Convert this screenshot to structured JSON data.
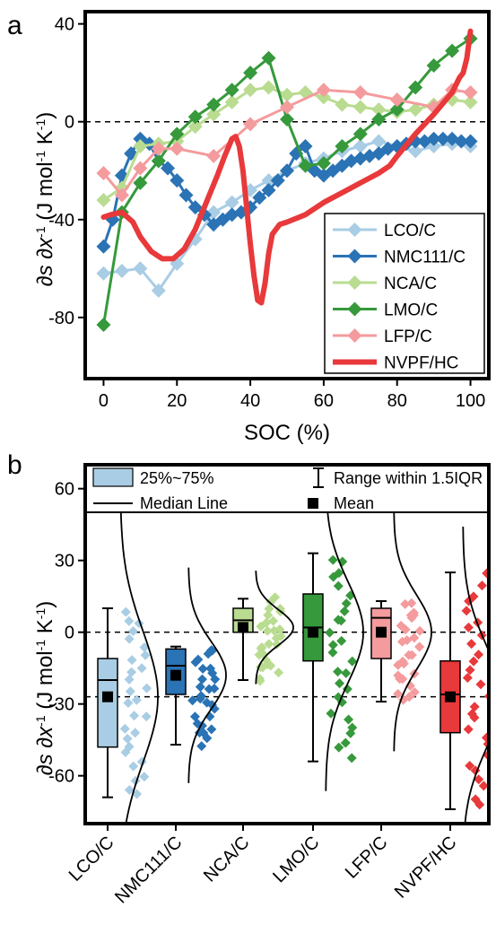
{
  "figure": {
    "panel_a_letter": "a",
    "panel_b_letter": "b"
  },
  "chart_data": [
    {
      "type": "line",
      "panel": "a",
      "xlabel": "SOC (%)",
      "ylabel_parts": {
        "a": "∂",
        "b": "s ",
        "c": "∂",
        "d": "x",
        "e": "-1",
        "f": " (J mol",
        "g": "-1",
        "h": " K",
        "i": "-1",
        "j": ")"
      },
      "xlim": [
        -5,
        105
      ],
      "ylim": [
        -105,
        45
      ],
      "xticks": [
        0,
        20,
        40,
        60,
        80,
        100
      ],
      "yticks": [
        40,
        0,
        -40,
        -80
      ],
      "xtick_labels": [
        "0",
        "20",
        "40",
        "60",
        "80",
        "100"
      ],
      "ytick_labels": [
        "40",
        "0",
        "-40",
        "-80"
      ],
      "reference_line_y": 0,
      "legend_position": "bottom-right",
      "series": [
        {
          "name": "LCO/C",
          "color": "#a9cde4",
          "marker": "diamond",
          "x": [
            0,
            5,
            10,
            15,
            20,
            25,
            30,
            35,
            40,
            45,
            50,
            55,
            60,
            65,
            70,
            75,
            80,
            85,
            90,
            95,
            100
          ],
          "y": [
            -62,
            -61,
            -60,
            -69,
            -58,
            -48,
            -37,
            -33,
            -28,
            -24,
            -20,
            -17,
            -15,
            -12,
            -10,
            -8,
            -10,
            -12,
            -10,
            -9,
            -10
          ]
        },
        {
          "name": "NMC111/C",
          "color": "#2a73b5",
          "marker": "diamond",
          "x": [
            0,
            2.5,
            5,
            7.5,
            10,
            12.5,
            15,
            17.5,
            20,
            22.5,
            25,
            27.5,
            30,
            32.5,
            35,
            37.5,
            40,
            42.5,
            45,
            47.5,
            50,
            52.5,
            55,
            57.5,
            60,
            62.5,
            65,
            67.5,
            70,
            72.5,
            75,
            77.5,
            80,
            82.5,
            85,
            87.5,
            90,
            92.5,
            95,
            97.5,
            100
          ],
          "y": [
            -51,
            -40,
            -22,
            -13,
            -7,
            -9,
            -16,
            -19,
            -24,
            -30,
            -35,
            -38,
            -42,
            -40,
            -38,
            -37,
            -35,
            -31,
            -28,
            -24,
            -20,
            -13,
            -10,
            -20,
            -22,
            -20,
            -18,
            -16,
            -15,
            -14,
            -13,
            -11,
            -10,
            -9,
            -8,
            -8,
            -7,
            -7,
            -7,
            -8,
            -8
          ]
        },
        {
          "name": "NCA/C",
          "color": "#b9dc91",
          "marker": "diamond",
          "x": [
            0,
            5,
            10,
            15,
            20,
            25,
            30,
            35,
            40,
            45,
            50,
            55,
            60,
            65,
            70,
            75,
            80,
            85,
            90,
            95,
            100
          ],
          "y": [
            -32,
            -27,
            -10,
            -9,
            -8,
            -2,
            3,
            8,
            13,
            14,
            11,
            12,
            10,
            7,
            6,
            5,
            4,
            5,
            7,
            9,
            8
          ]
        },
        {
          "name": "LMO/C",
          "color": "#36993b",
          "marker": "diamond",
          "x": [
            0,
            5,
            10,
            15,
            20,
            25,
            30,
            35,
            40,
            45,
            50,
            55,
            60,
            65,
            70,
            75,
            80,
            85,
            90,
            95,
            100
          ],
          "y": [
            -83,
            -37,
            -25,
            -16,
            -5,
            2,
            7,
            13,
            20,
            26,
            1,
            -18,
            -17,
            -10,
            -5,
            1,
            5,
            14,
            23,
            29,
            34
          ]
        },
        {
          "name": "LFP/C",
          "color": "#f49b9d",
          "marker": "diamond",
          "x": [
            0,
            5,
            10,
            15,
            20,
            30,
            40,
            50,
            60,
            70,
            80,
            90,
            95,
            100
          ],
          "y": [
            -21,
            -30,
            -19,
            -11,
            -11,
            -14,
            -1,
            6,
            13,
            12,
            9,
            6,
            13,
            12
          ]
        },
        {
          "name": "NVPF/HC",
          "color": "#e8393b",
          "marker": "none",
          "x": [
            0,
            2,
            5,
            8,
            10,
            13,
            16,
            19,
            22,
            25,
            28,
            31,
            33,
            35,
            36,
            37,
            38,
            39,
            40,
            41,
            42,
            43,
            44,
            45,
            46,
            48,
            50,
            55,
            60,
            65,
            70,
            75,
            78,
            80,
            85,
            90,
            95,
            97,
            98,
            99,
            100
          ],
          "y": [
            -39,
            -38,
            -37,
            -41,
            -47,
            -53,
            -56,
            -56,
            -52,
            -44,
            -33,
            -22,
            -14,
            -7,
            -6,
            -10,
            -20,
            -35,
            -50,
            -63,
            -73,
            -74,
            -66,
            -54,
            -46,
            -42,
            -41,
            -38,
            -33,
            -29,
            -25,
            -21,
            -18,
            -14,
            -5,
            3,
            12,
            18,
            20,
            26,
            37
          ]
        }
      ]
    },
    {
      "type": "box",
      "panel": "b",
      "ylabel_parts": {
        "a": "∂",
        "b": "s ",
        "c": "∂",
        "d": "x",
        "e": "-1",
        "f": " (J mol",
        "g": "-1",
        "h": " K",
        "i": "-1",
        "j": ")"
      },
      "ylim": [
        -80,
        70
      ],
      "yticks": [
        60,
        30,
        0,
        -30,
        -60
      ],
      "ytick_labels": [
        "60",
        "30",
        "0",
        "-30",
        "-60"
      ],
      "reference_lines_y": [
        0,
        -27
      ],
      "categories": [
        "LCO/C",
        "NMC111/C",
        "NCA/C",
        "LMO/C",
        "LFP/C",
        "NVPF/HC"
      ],
      "legend": {
        "box_label": "25%~75%",
        "range_label": "Range within 1.5IQR",
        "median_label": "Median Line",
        "mean_label": "Mean"
      },
      "boxes": [
        {
          "name": "LCO/C",
          "color": "#a9cde4",
          "q1": -48,
          "median": -20,
          "q3": -11,
          "mean": -27,
          "whisker_low": -69,
          "whisker_high": 10
        },
        {
          "name": "NMC111/C",
          "color": "#2a73b5",
          "q1": -26,
          "median": -14,
          "q3": -7,
          "mean": -18,
          "whisker_low": -47,
          "whisker_high": -6
        },
        {
          "name": "NCA/C",
          "color": "#b9dc91",
          "q1": 0,
          "median": 5,
          "q3": 10,
          "mean": 2,
          "whisker_low": -20,
          "whisker_high": 14
        },
        {
          "name": "LMO/C",
          "color": "#36993b",
          "q1": -12,
          "median": 2,
          "q3": 16,
          "mean": 0,
          "whisker_low": -54,
          "whisker_high": 33
        },
        {
          "name": "LFP/C",
          "color": "#f49b9d",
          "q1": -11,
          "median": 6,
          "q3": 10,
          "mean": 0,
          "whisker_low": -29,
          "whisker_high": 13
        },
        {
          "name": "NVPF/HC",
          "color": "#e8393b",
          "q1": -42,
          "median": -26,
          "q3": -12,
          "mean": -27,
          "whisker_low": -74,
          "whisker_high": 25
        }
      ]
    }
  ]
}
